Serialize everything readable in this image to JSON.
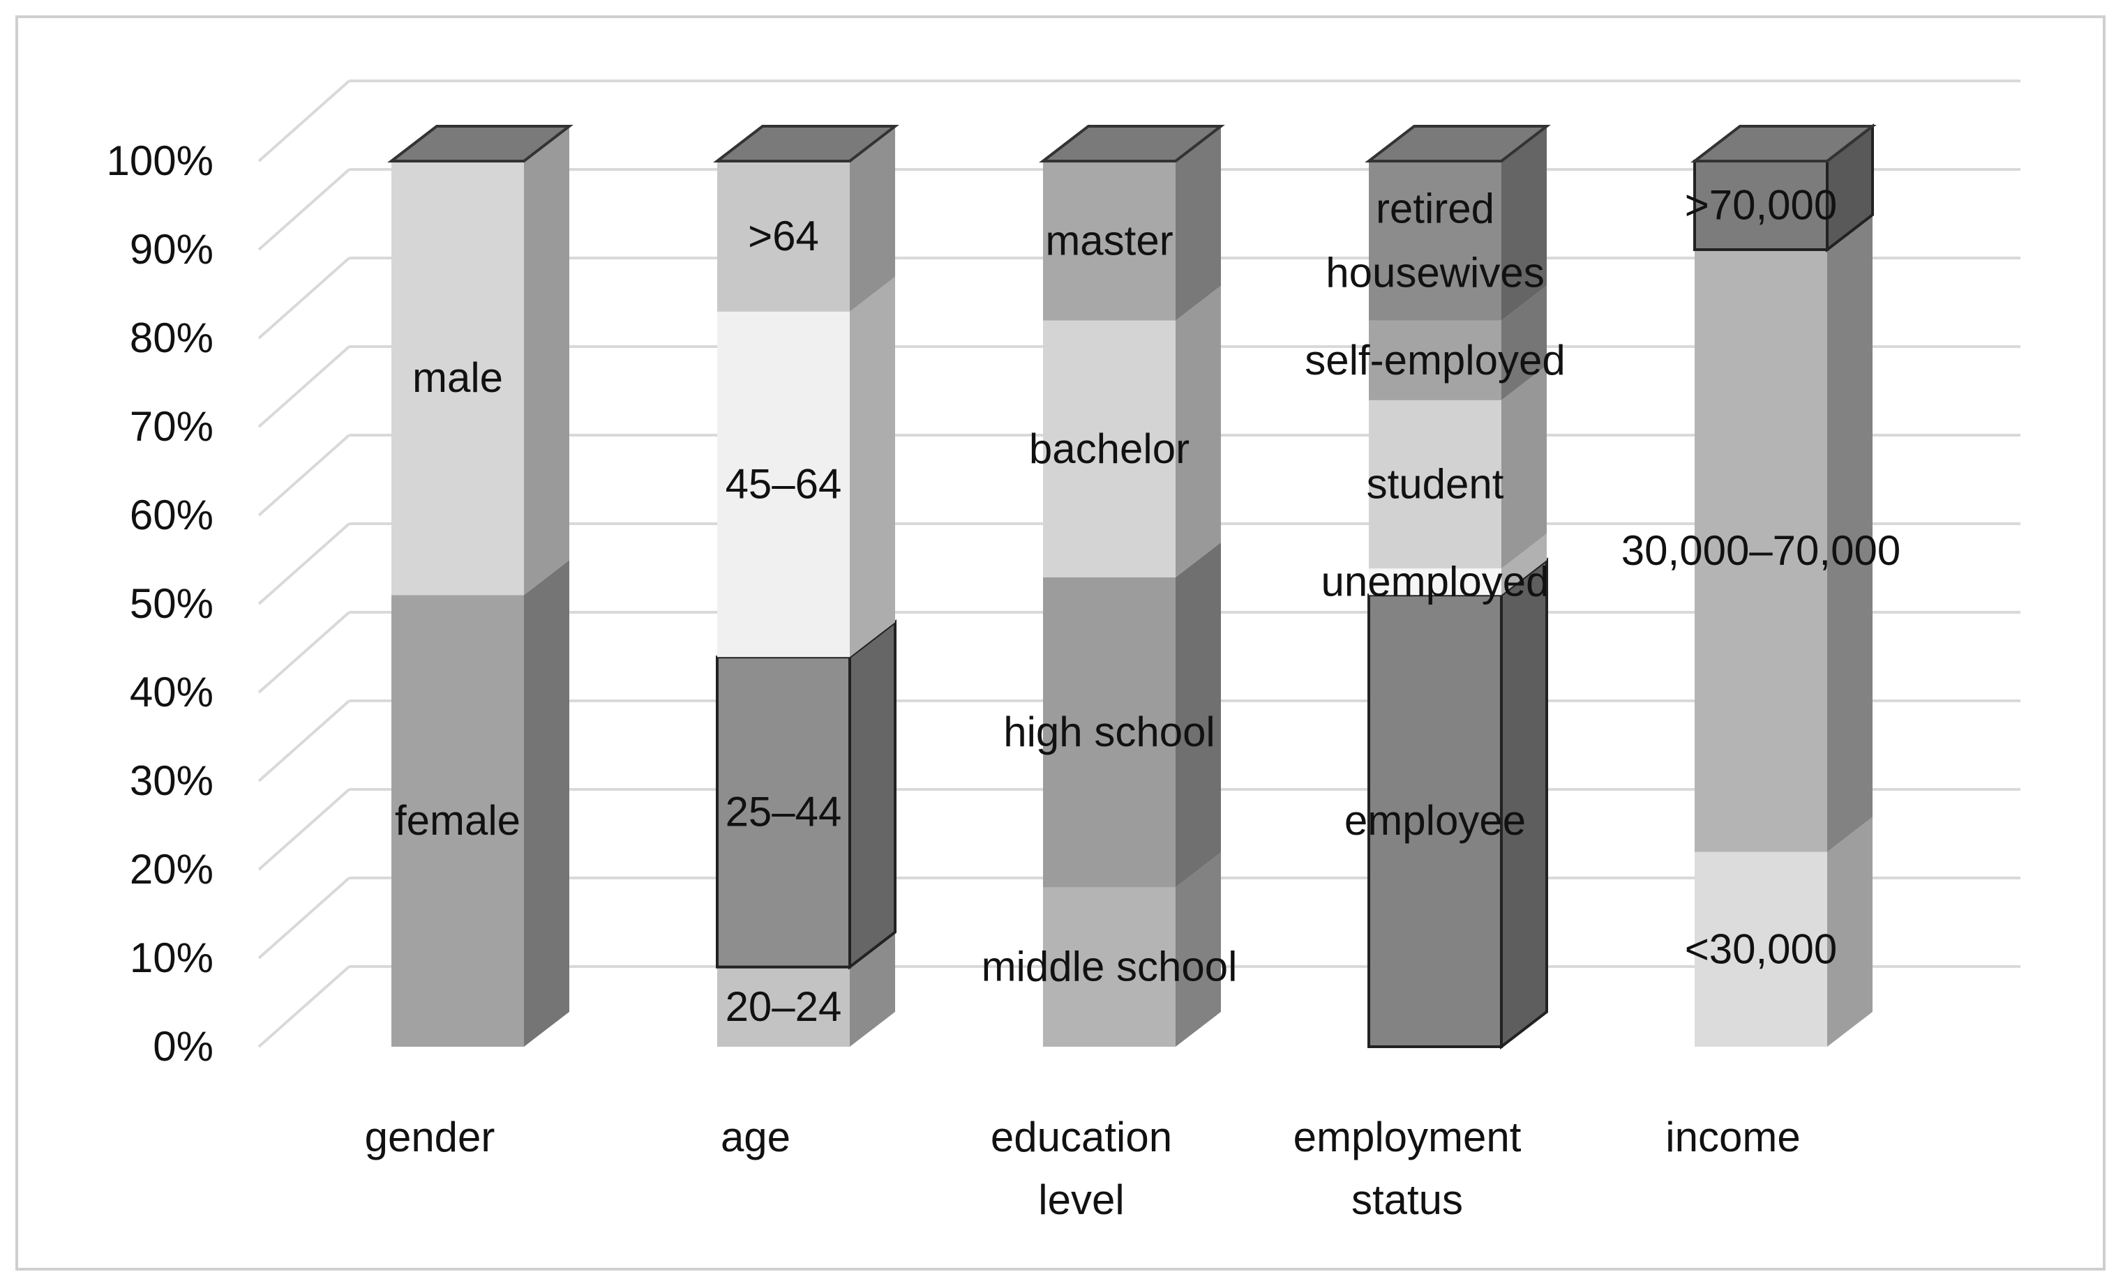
{
  "chart_data": {
    "type": "bar",
    "stacked": true,
    "percent_stacked": true,
    "three_d": true,
    "title": "",
    "xlabel": "",
    "ylabel": "",
    "ylim": [
      0,
      100
    ],
    "y_ticks": [
      "0%",
      "10%",
      "20%",
      "30%",
      "40%",
      "50%",
      "60%",
      "70%",
      "80%",
      "90%",
      "100%"
    ],
    "grid": true,
    "legend": "none",
    "categories": [
      {
        "label": "gender",
        "label_lines": [
          "gender"
        ],
        "segments": [
          {
            "name": "female",
            "value": 51,
            "color": "#a2a2a2"
          },
          {
            "name": "male",
            "value": 49,
            "color": "#d6d6d6"
          }
        ]
      },
      {
        "label": "age",
        "label_lines": [
          "age"
        ],
        "segments": [
          {
            "name": "20–24",
            "value": 9,
            "color": "#c3c3c3"
          },
          {
            "name": "25–44",
            "value": 35,
            "color": "#8e8e8e",
            "outlined": true
          },
          {
            "name": "45–64",
            "value": 39,
            "color": "#f0f0f0"
          },
          {
            "name": ">64",
            "value": 17,
            "color": "#c8c8c8"
          }
        ]
      },
      {
        "label": "education level",
        "label_lines": [
          "education",
          "level"
        ],
        "segments": [
          {
            "name": "middle school",
            "value": 18,
            "color": "#b4b4b4"
          },
          {
            "name": "high school",
            "value": 35,
            "color": "#9c9c9c"
          },
          {
            "name": "bachelor",
            "value": 29,
            "color": "#d4d4d4"
          },
          {
            "name": "master",
            "value": 18,
            "color": "#a8a8a8"
          }
        ]
      },
      {
        "label": "employment status",
        "label_lines": [
          "employment",
          "status"
        ],
        "segments": [
          {
            "name": "employee",
            "value": 51,
            "color": "#838383",
            "outlined": true
          },
          {
            "name": "unemployed",
            "value": 3,
            "color": "#f6f6f6"
          },
          {
            "name": "student",
            "value": 19,
            "color": "#d2d2d2"
          },
          {
            "name": "self-employed",
            "value": 9,
            "color": "#a4a4a4"
          },
          {
            "name": "retired housewives",
            "label_lines": [
              "retired",
              "housewives"
            ],
            "value": 18,
            "color": "#8c8c8c"
          }
        ]
      },
      {
        "label": "income",
        "label_lines": [
          "income"
        ],
        "segments": [
          {
            "name": "<30,000",
            "value": 22,
            "color": "#dcdcdc"
          },
          {
            "name": "30,000–70,000",
            "value": 68,
            "color": "#b4b4b4"
          },
          {
            "name": ">70,000",
            "value": 10,
            "color": "#7c7c7c",
            "outlined": true
          }
        ]
      }
    ]
  }
}
